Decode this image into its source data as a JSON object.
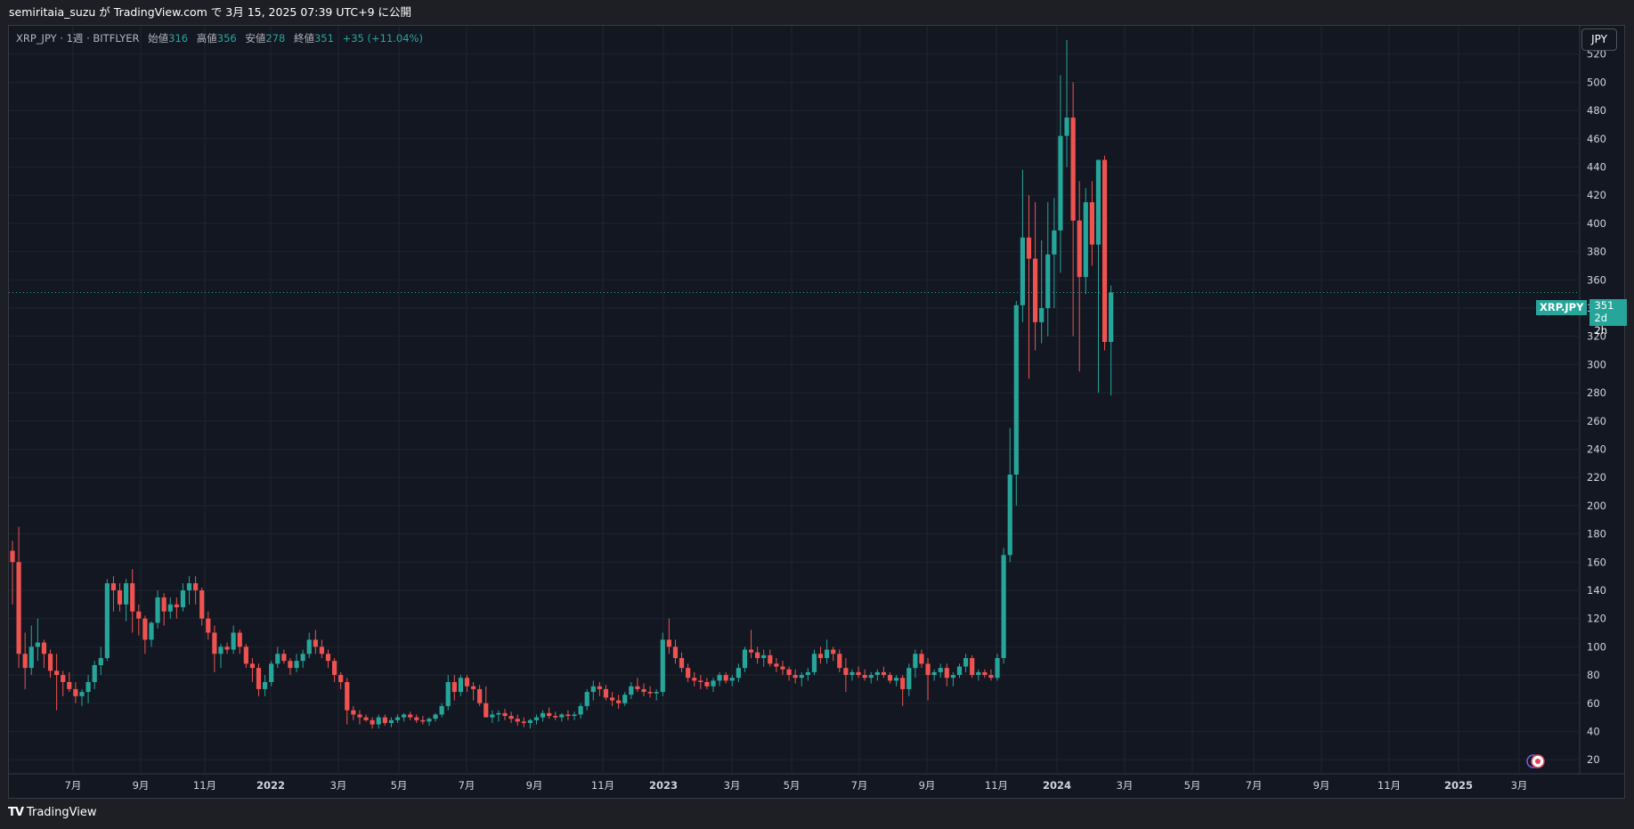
{
  "header": {
    "published": "semiritaia_suzu が TradingView.com で 3月 15, 2025 07:39 UTC+9 に公開"
  },
  "legend": {
    "symbol": "XRP_JPY · 1週 · BITFLYER",
    "open_label": "始値",
    "open": "316",
    "high_label": "高値",
    "high": "356",
    "low_label": "安値",
    "low": "278",
    "close_label": "終値",
    "close": "351",
    "change": "+35 (+11.04%)"
  },
  "currency_button": "JPY",
  "price_tag": {
    "symbol": "XRP.JPY",
    "price": "351",
    "countdown": "2d 2h"
  },
  "brand": {
    "logo": "TV",
    "name": "TradingView"
  },
  "colors": {
    "background": "#131722",
    "grid": "#1f2430",
    "up": "#26a69a",
    "down": "#ef5350",
    "text": "#d1d4dc"
  },
  "chart_data": {
    "type": "candlestick",
    "y_axis_ticks": [
      20,
      40,
      60,
      80,
      100,
      120,
      140,
      160,
      180,
      200,
      220,
      240,
      260,
      280,
      300,
      320,
      340,
      360,
      380,
      400,
      420,
      440,
      460,
      480,
      500,
      520
    ],
    "ylim": [
      10,
      540
    ],
    "x_axis_labels": [
      "7月",
      "9月",
      "11月",
      "2022",
      "3月",
      "5月",
      "7月",
      "9月",
      "11月",
      "2023",
      "3月",
      "5月",
      "7月",
      "9月",
      "11月",
      "2024",
      "3月",
      "5月",
      "7月",
      "9月",
      "11月",
      "2025",
      "3月"
    ],
    "current_price": 351,
    "candles": [
      [
        168,
        175,
        130,
        160
      ],
      [
        160,
        185,
        85,
        95
      ],
      [
        95,
        110,
        70,
        85
      ],
      [
        85,
        115,
        80,
        100
      ],
      [
        100,
        120,
        90,
        103
      ],
      [
        103,
        105,
        85,
        95
      ],
      [
        95,
        98,
        78,
        83
      ],
      [
        83,
        95,
        55,
        80
      ],
      [
        80,
        83,
        65,
        75
      ],
      [
        75,
        82,
        68,
        70
      ],
      [
        70,
        75,
        60,
        65
      ],
      [
        65,
        70,
        58,
        68
      ],
      [
        68,
        80,
        60,
        75
      ],
      [
        75,
        90,
        70,
        87
      ],
      [
        87,
        100,
        80,
        92
      ],
      [
        92,
        148,
        90,
        145
      ],
      [
        145,
        150,
        125,
        140
      ],
      [
        140,
        145,
        125,
        130
      ],
      [
        130,
        148,
        118,
        145
      ],
      [
        145,
        155,
        110,
        125
      ],
      [
        125,
        130,
        108,
        120
      ],
      [
        120,
        122,
        95,
        105
      ],
      [
        105,
        118,
        100,
        117
      ],
      [
        117,
        140,
        113,
        135
      ],
      [
        135,
        138,
        115,
        125
      ],
      [
        125,
        135,
        120,
        130
      ],
      [
        130,
        135,
        120,
        128
      ],
      [
        128,
        145,
        125,
        140
      ],
      [
        140,
        150,
        130,
        145
      ],
      [
        145,
        150,
        130,
        140
      ],
      [
        140,
        142,
        115,
        120
      ],
      [
        120,
        125,
        105,
        110
      ],
      [
        110,
        115,
        82,
        95
      ],
      [
        95,
        102,
        85,
        100
      ],
      [
        100,
        103,
        95,
        98
      ],
      [
        98,
        115,
        95,
        110
      ],
      [
        110,
        112,
        95,
        100
      ],
      [
        100,
        102,
        85,
        88
      ],
      [
        88,
        92,
        75,
        85
      ],
      [
        85,
        88,
        65,
        70
      ],
      [
        70,
        80,
        65,
        75
      ],
      [
        75,
        90,
        72,
        88
      ],
      [
        88,
        100,
        85,
        95
      ],
      [
        95,
        98,
        88,
        90
      ],
      [
        90,
        92,
        80,
        85
      ],
      [
        85,
        95,
        82,
        90
      ],
      [
        90,
        98,
        85,
        95
      ],
      [
        95,
        110,
        92,
        105
      ],
      [
        105,
        112,
        95,
        100
      ],
      [
        100,
        105,
        92,
        95
      ],
      [
        95,
        98,
        85,
        90
      ],
      [
        90,
        92,
        75,
        80
      ],
      [
        80,
        82,
        70,
        75
      ],
      [
        75,
        78,
        45,
        55
      ],
      [
        55,
        58,
        48,
        52
      ],
      [
        52,
        55,
        45,
        50
      ],
      [
        50,
        52,
        47,
        48
      ],
      [
        48,
        50,
        42,
        45
      ],
      [
        45,
        52,
        42,
        50
      ],
      [
        50,
        52,
        44,
        46
      ],
      [
        46,
        50,
        43,
        48
      ],
      [
        48,
        52,
        46,
        50
      ],
      [
        50,
        53,
        47,
        52
      ],
      [
        52,
        54,
        48,
        50
      ],
      [
        50,
        52,
        46,
        48
      ],
      [
        48,
        51,
        45,
        47
      ],
      [
        47,
        50,
        44,
        49
      ],
      [
        49,
        53,
        47,
        52
      ],
      [
        52,
        60,
        50,
        58
      ],
      [
        58,
        80,
        55,
        75
      ],
      [
        75,
        80,
        62,
        68
      ],
      [
        68,
        80,
        65,
        78
      ],
      [
        78,
        80,
        68,
        72
      ],
      [
        72,
        75,
        62,
        70
      ],
      [
        70,
        73,
        58,
        60
      ],
      [
        60,
        72,
        52,
        50
      ],
      [
        50,
        55,
        46,
        52
      ],
      [
        52,
        55,
        47,
        53
      ],
      [
        53,
        56,
        48,
        51
      ],
      [
        51,
        54,
        46,
        49
      ],
      [
        49,
        52,
        44,
        47
      ],
      [
        47,
        50,
        43,
        46
      ],
      [
        46,
        49,
        42,
        48
      ],
      [
        48,
        52,
        45,
        50
      ],
      [
        50,
        55,
        47,
        53
      ],
      [
        53,
        57,
        49,
        51
      ],
      [
        51,
        54,
        48,
        50
      ],
      [
        50,
        53,
        47,
        52
      ],
      [
        52,
        55,
        48,
        51
      ],
      [
        51,
        54,
        48,
        52
      ],
      [
        52,
        60,
        49,
        58
      ],
      [
        58,
        70,
        55,
        68
      ],
      [
        68,
        76,
        62,
        72
      ],
      [
        72,
        75,
        65,
        70
      ],
      [
        70,
        73,
        62,
        64
      ],
      [
        64,
        68,
        58,
        62
      ],
      [
        62,
        66,
        56,
        60
      ],
      [
        60,
        68,
        58,
        66
      ],
      [
        66,
        75,
        63,
        72
      ],
      [
        72,
        78,
        68,
        70
      ],
      [
        70,
        74,
        65,
        68
      ],
      [
        68,
        72,
        64,
        67
      ],
      [
        67,
        70,
        62,
        68
      ],
      [
        68,
        110,
        65,
        105
      ],
      [
        105,
        120,
        95,
        100
      ],
      [
        100,
        105,
        88,
        92
      ],
      [
        92,
        96,
        82,
        85
      ],
      [
        85,
        88,
        75,
        78
      ],
      [
        78,
        82,
        72,
        76
      ],
      [
        76,
        80,
        70,
        75
      ],
      [
        75,
        78,
        70,
        72
      ],
      [
        72,
        78,
        68,
        76
      ],
      [
        76,
        82,
        72,
        80
      ],
      [
        80,
        82,
        74,
        76
      ],
      [
        76,
        80,
        72,
        78
      ],
      [
        78,
        88,
        75,
        85
      ],
      [
        85,
        100,
        82,
        98
      ],
      [
        98,
        112,
        92,
        96
      ],
      [
        96,
        100,
        88,
        92
      ],
      [
        92,
        98,
        86,
        94
      ],
      [
        94,
        98,
        86,
        88
      ],
      [
        88,
        92,
        82,
        86
      ],
      [
        86,
        90,
        80,
        84
      ],
      [
        84,
        86,
        76,
        80
      ],
      [
        80,
        84,
        74,
        78
      ],
      [
        78,
        82,
        72,
        80
      ],
      [
        80,
        85,
        76,
        82
      ],
      [
        82,
        98,
        80,
        95
      ],
      [
        95,
        100,
        88,
        92
      ],
      [
        92,
        105,
        88,
        98
      ],
      [
        98,
        100,
        90,
        95
      ],
      [
        95,
        98,
        82,
        85
      ],
      [
        85,
        92,
        68,
        80
      ],
      [
        80,
        84,
        76,
        82
      ],
      [
        82,
        86,
        78,
        80
      ],
      [
        80,
        84,
        76,
        78
      ],
      [
        78,
        82,
        74,
        80
      ],
      [
        80,
        84,
        76,
        82
      ],
      [
        82,
        86,
        78,
        80
      ],
      [
        80,
        82,
        74,
        76
      ],
      [
        76,
        80,
        72,
        78
      ],
      [
        78,
        80,
        58,
        70
      ],
      [
        70,
        88,
        65,
        85
      ],
      [
        85,
        98,
        78,
        95
      ],
      [
        95,
        98,
        85,
        88
      ],
      [
        88,
        92,
        62,
        80
      ],
      [
        80,
        84,
        76,
        82
      ],
      [
        82,
        88,
        78,
        85
      ],
      [
        85,
        88,
        72,
        78
      ],
      [
        78,
        82,
        72,
        80
      ],
      [
        80,
        88,
        78,
        86
      ],
      [
        86,
        95,
        82,
        92
      ],
      [
        92,
        94,
        78,
        80
      ],
      [
        80,
        84,
        76,
        82
      ],
      [
        82,
        84,
        78,
        80
      ],
      [
        80,
        84,
        76,
        78
      ],
      [
        78,
        95,
        76,
        92
      ],
      [
        92,
        170,
        88,
        165
      ],
      [
        165,
        255,
        160,
        222
      ],
      [
        222,
        345,
        200,
        342
      ],
      [
        342,
        438,
        330,
        390
      ],
      [
        390,
        420,
        290,
        375
      ],
      [
        375,
        415,
        310,
        330
      ],
      [
        330,
        388,
        315,
        340
      ],
      [
        340,
        415,
        320,
        378
      ],
      [
        378,
        418,
        340,
        395
      ],
      [
        395,
        505,
        365,
        462
      ],
      [
        462,
        530,
        440,
        475
      ],
      [
        475,
        500,
        320,
        402
      ],
      [
        402,
        430,
        295,
        362
      ],
      [
        362,
        425,
        350,
        415
      ],
      [
        415,
        430,
        370,
        385
      ],
      [
        385,
        445,
        280,
        445
      ],
      [
        445,
        448,
        310,
        316
      ],
      [
        316,
        356,
        278,
        351
      ]
    ]
  }
}
